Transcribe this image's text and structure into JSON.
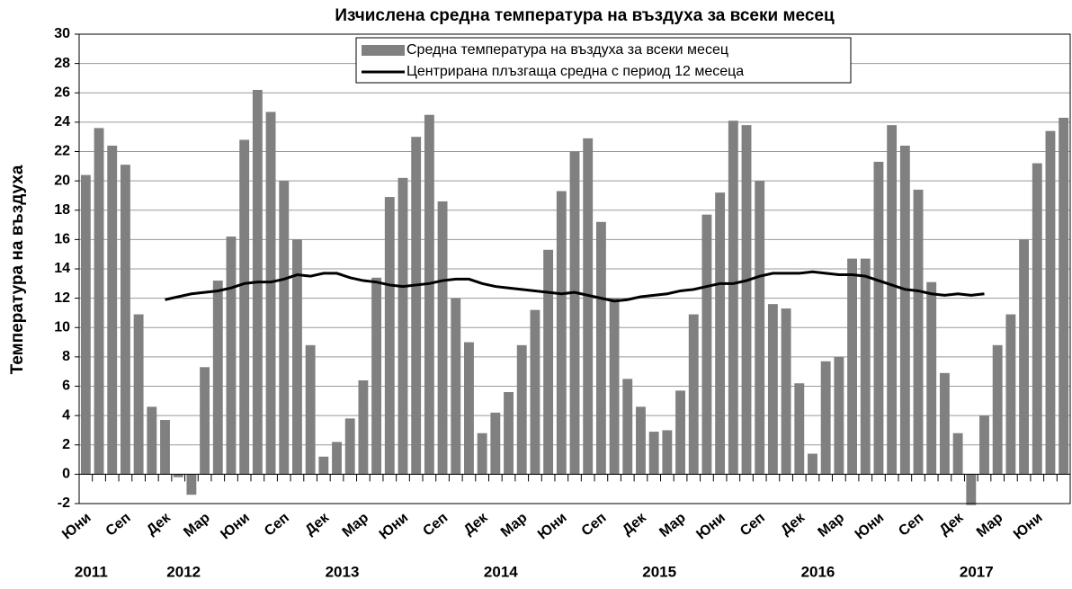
{
  "chart_data": {
    "type": "bar",
    "title": "Изчислена средна температура на въздуха за всеки месец",
    "y_label": "Температура на въздуха",
    "categories": [
      "Юни",
      null,
      null,
      "Сеп",
      null,
      null,
      "Дек",
      null,
      null,
      "Мар",
      null,
      null,
      "Юни",
      null,
      null,
      "Сеп",
      null,
      null,
      "Дек",
      null,
      null,
      "Мар",
      null,
      null,
      "Юни",
      null,
      null,
      "Сеп",
      null,
      null,
      "Дек",
      null,
      null,
      "Мар",
      null,
      null,
      "Юни",
      null,
      null,
      "Сеп",
      null,
      null,
      "Дек",
      null,
      null,
      "Мар",
      null,
      null,
      "Юни",
      null,
      null,
      "Сеп",
      null,
      null,
      "Дек",
      null,
      null,
      "Мар",
      null,
      null,
      "Юни",
      null,
      null,
      "Сеп",
      null,
      null,
      "Дек",
      null,
      null,
      "Мар",
      null,
      null,
      "Юни",
      null,
      null
    ],
    "category_groups": [
      "2011",
      null,
      null,
      null,
      null,
      null,
      null,
      "2012",
      null,
      null,
      null,
      null,
      null,
      null,
      null,
      null,
      null,
      null,
      null,
      "2013",
      null,
      null,
      null,
      null,
      null,
      null,
      null,
      null,
      null,
      null,
      null,
      "2014",
      null,
      null,
      null,
      null,
      null,
      null,
      null,
      null,
      null,
      null,
      null,
      "2015",
      null,
      null,
      null,
      null,
      null,
      null,
      null,
      null,
      null,
      null,
      null,
      "2016",
      null,
      null,
      null,
      null,
      null,
      null,
      null,
      null,
      null,
      null,
      null,
      "2017",
      null,
      null,
      null,
      null,
      null,
      null,
      null
    ],
    "series": [
      {
        "name": "Средна температура на въздуха за всеки месец",
        "type": "bar",
        "color": "#808080",
        "values": [
          20.4,
          23.6,
          22.4,
          21.1,
          10.9,
          4.6,
          3.7,
          -0.2,
          -1.4,
          7.3,
          13.2,
          16.2,
          22.8,
          26.2,
          24.7,
          20.0,
          16.0,
          8.8,
          1.2,
          2.2,
          3.8,
          6.4,
          13.4,
          18.9,
          20.2,
          23.0,
          24.5,
          18.6,
          12.0,
          9.0,
          2.8,
          4.2,
          5.6,
          8.8,
          11.2,
          15.3,
          19.3,
          22.0,
          22.9,
          17.2,
          12.0,
          6.5,
          4.6,
          2.9,
          3.0,
          5.7,
          10.9,
          17.7,
          19.2,
          24.1,
          23.8,
          20.0,
          11.6,
          11.3,
          6.2,
          1.4,
          7.7,
          8.0,
          14.7,
          14.7,
          21.3,
          23.8,
          22.4,
          19.4,
          13.1,
          6.9,
          2.8,
          -2.1,
          4.0,
          8.8,
          10.9,
          16.0,
          21.2,
          23.4,
          24.3
        ]
      },
      {
        "name": "Центрирана плъзгаща средна с период 12 месеца",
        "type": "line",
        "color": "#000000",
        "values": [
          null,
          null,
          null,
          null,
          null,
          null,
          11.9,
          12.1,
          12.3,
          12.4,
          12.5,
          12.7,
          13.0,
          13.1,
          13.1,
          13.3,
          13.6,
          13.5,
          13.7,
          13.7,
          13.4,
          13.2,
          13.1,
          12.9,
          12.8,
          12.9,
          13.0,
          13.2,
          13.3,
          13.3,
          13.0,
          12.8,
          12.7,
          12.6,
          12.5,
          12.4,
          12.3,
          12.4,
          12.2,
          12.0,
          11.8,
          11.9,
          12.1,
          12.2,
          12.3,
          12.5,
          12.6,
          12.8,
          13.0,
          13.0,
          13.2,
          13.5,
          13.7,
          13.7,
          13.7,
          13.8,
          13.7,
          13.6,
          13.6,
          13.5,
          13.2,
          12.9,
          12.6,
          12.5,
          12.3,
          12.2,
          12.3,
          12.2,
          12.3,
          null,
          null,
          null,
          null,
          null,
          null
        ]
      }
    ],
    "ylim": [
      -2,
      30
    ],
    "yticks": [
      -2,
      0,
      2,
      4,
      6,
      8,
      10,
      12,
      14,
      16,
      18,
      20,
      22,
      24,
      26,
      28,
      30
    ],
    "grid": true,
    "legend": "top"
  }
}
